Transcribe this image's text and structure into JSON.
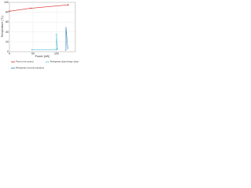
{
  "chart_data": {
    "type": "line",
    "x_label": "Power (kW)",
    "y_label": "Temperature (°C)",
    "xlim": [
      0,
      140
    ],
    "xticks": [
      0,
      50,
      100
    ],
    "ylim": [
      0,
      100
    ],
    "yticks": [
      0,
      20,
      40,
      60,
      80,
      100
    ],
    "grid": true,
    "series": [
      {
        "name": "Point to be cooled",
        "color": "#d62728",
        "marker": "dot",
        "x": [
          0,
          45,
          125
        ],
        "values": [
          82,
          88,
          95
        ]
      },
      {
        "name": "Refrigerant (last design situation)",
        "color": "#5bc0de",
        "marker": "dot",
        "x": [
          48,
          100,
          100,
          102
        ],
        "values": [
          4,
          4,
          35,
          6
        ]
      },
      {
        "name": "Refrigerant (normal situation)",
        "color": "#1f77b4",
        "marker": "none",
        "x": [
          118,
          120,
          120,
          124
        ],
        "values": [
          3,
          3,
          50,
          5
        ]
      }
    ]
  }
}
